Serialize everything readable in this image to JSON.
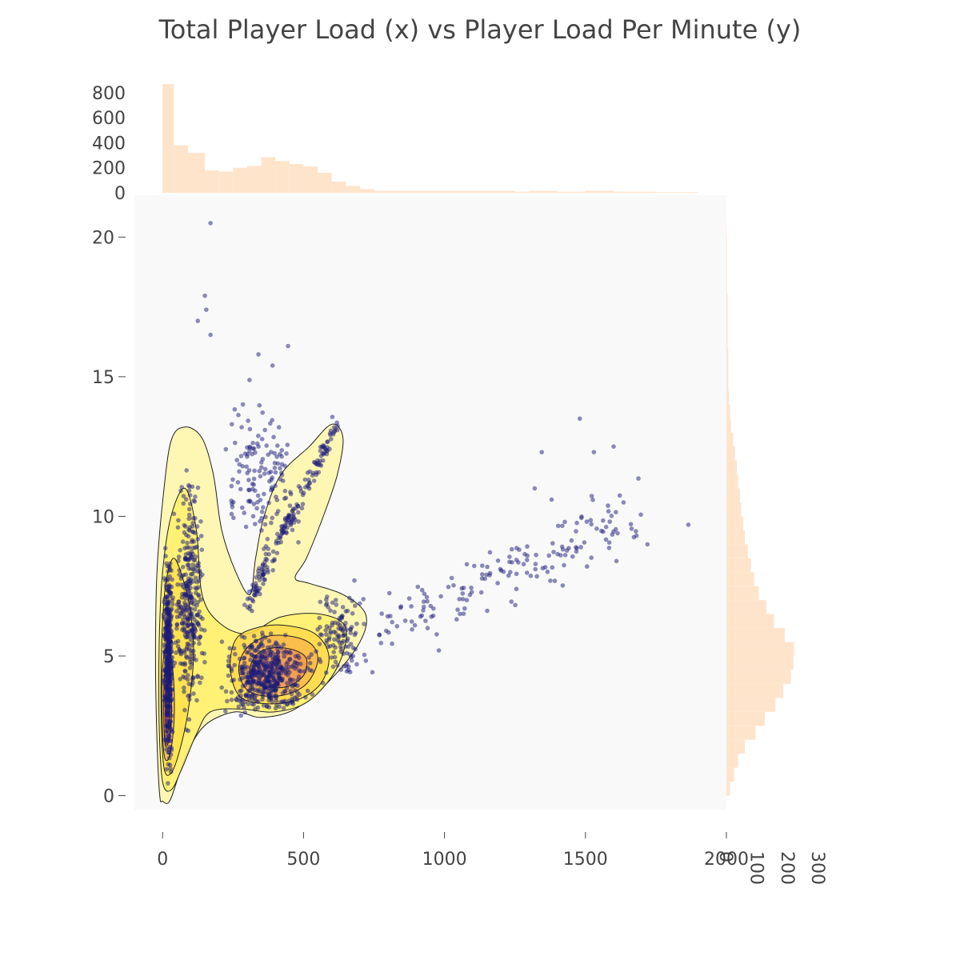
{
  "chart_data": {
    "type": "scatter",
    "title": "Total Player Load (x) vs Player Load Per Minute (y)",
    "xlabel": "",
    "ylabel": "",
    "xlim": [
      -100,
      2000
    ],
    "ylim": [
      -0.5,
      21.5
    ],
    "xticks": [
      0,
      500,
      1000,
      1500,
      2000
    ],
    "yticks": [
      0,
      5,
      10,
      15,
      20
    ],
    "grid": false,
    "legend": "none",
    "colors": {
      "points": "#1a1a7a",
      "histogram": "#ffe4cc",
      "plot_background": "#f9f9f9",
      "contour_line": "#222222",
      "density_low": "#fff38a",
      "density_mid": "#f6b33c",
      "density_high": "#b0506a"
    },
    "top_histogram": {
      "yticks": [
        0,
        200,
        400,
        600,
        800
      ],
      "bins": [
        {
          "x0": 0,
          "x1": 40,
          "count": 870
        },
        {
          "x0": 40,
          "x1": 90,
          "count": 380
        },
        {
          "x0": 90,
          "x1": 150,
          "count": 320
        },
        {
          "x0": 150,
          "x1": 200,
          "count": 180
        },
        {
          "x0": 200,
          "x1": 250,
          "count": 170
        },
        {
          "x0": 250,
          "x1": 300,
          "count": 200
        },
        {
          "x0": 300,
          "x1": 350,
          "count": 215
        },
        {
          "x0": 350,
          "x1": 400,
          "count": 285
        },
        {
          "x0": 400,
          "x1": 450,
          "count": 255
        },
        {
          "x0": 450,
          "x1": 500,
          "count": 230
        },
        {
          "x0": 500,
          "x1": 550,
          "count": 210
        },
        {
          "x0": 550,
          "x1": 600,
          "count": 160
        },
        {
          "x0": 600,
          "x1": 650,
          "count": 90
        },
        {
          "x0": 650,
          "x1": 700,
          "count": 55
        },
        {
          "x0": 700,
          "x1": 750,
          "count": 30
        },
        {
          "x0": 750,
          "x1": 1250,
          "count": 15
        },
        {
          "x0": 1250,
          "x1": 1300,
          "count": 8
        },
        {
          "x0": 1300,
          "x1": 1400,
          "count": 15
        },
        {
          "x0": 1400,
          "x1": 1500,
          "count": 8
        },
        {
          "x0": 1500,
          "x1": 1600,
          "count": 15
        },
        {
          "x0": 1600,
          "x1": 1750,
          "count": 8
        },
        {
          "x0": 1750,
          "x1": 1900,
          "count": 5
        }
      ]
    },
    "right_histogram": {
      "xticks": [
        0,
        100,
        200,
        300
      ],
      "bins": [
        {
          "y0": 0,
          "y1": 0.5,
          "count": 12
        },
        {
          "y0": 0.5,
          "y1": 1,
          "count": 25
        },
        {
          "y0": 1,
          "y1": 1.5,
          "count": 38
        },
        {
          "y0": 1.5,
          "y1": 2,
          "count": 60
        },
        {
          "y0": 2,
          "y1": 2.5,
          "count": 95
        },
        {
          "y0": 2.5,
          "y1": 3,
          "count": 125
        },
        {
          "y0": 3,
          "y1": 3.5,
          "count": 160
        },
        {
          "y0": 3.5,
          "y1": 4,
          "count": 185
        },
        {
          "y0": 4,
          "y1": 4.5,
          "count": 210
        },
        {
          "y0": 4.5,
          "y1": 5,
          "count": 218
        },
        {
          "y0": 5,
          "y1": 5.5,
          "count": 220
        },
        {
          "y0": 5.5,
          "y1": 6,
          "count": 190
        },
        {
          "y0": 6,
          "y1": 6.5,
          "count": 155
        },
        {
          "y0": 6.5,
          "y1": 7,
          "count": 130
        },
        {
          "y0": 7,
          "y1": 7.5,
          "count": 105
        },
        {
          "y0": 7.5,
          "y1": 8,
          "count": 90
        },
        {
          "y0": 8,
          "y1": 8.5,
          "count": 80
        },
        {
          "y0": 8.5,
          "y1": 9,
          "count": 70
        },
        {
          "y0": 9,
          "y1": 9.5,
          "count": 60
        },
        {
          "y0": 9.5,
          "y1": 10,
          "count": 55
        },
        {
          "y0": 10,
          "y1": 10.5,
          "count": 48
        },
        {
          "y0": 10.5,
          "y1": 11,
          "count": 44
        },
        {
          "y0": 11,
          "y1": 11.5,
          "count": 38
        },
        {
          "y0": 11.5,
          "y1": 12,
          "count": 34
        },
        {
          "y0": 12,
          "y1": 12.5,
          "count": 28
        },
        {
          "y0": 12.5,
          "y1": 13,
          "count": 22
        },
        {
          "y0": 13,
          "y1": 13.5,
          "count": 15
        },
        {
          "y0": 13.5,
          "y1": 14,
          "count": 12
        },
        {
          "y0": 14,
          "y1": 14.5,
          "count": 8
        },
        {
          "y0": 14.5,
          "y1": 16,
          "count": 6
        },
        {
          "y0": 16,
          "y1": 18,
          "count": 4
        },
        {
          "y0": 18,
          "y1": 20,
          "count": 2
        },
        {
          "y0": 20,
          "y1": 20.5,
          "count": 1
        }
      ]
    },
    "series": [
      {
        "clusters": [
          {
            "x_min": 0,
            "x_max": 40,
            "y_min": 0.2,
            "y_max": 9.5,
            "count": 420
          },
          {
            "x_min": 30,
            "x_max": 160,
            "y_min": 1.5,
            "y_max": 12.5,
            "count": 320
          },
          {
            "x_min": 180,
            "x_max": 560,
            "y_min": 2.5,
            "y_max": 6.2,
            "count": 460
          },
          {
            "x_min": 300,
            "x_max": 620,
            "y_min": 6.5,
            "y_max": 13.5,
            "count": 180
          },
          {
            "x_min": 180,
            "x_max": 520,
            "y_min": 7.5,
            "y_max": 15.5,
            "count": 140
          },
          {
            "x_min": 500,
            "x_max": 760,
            "y_min": 3.5,
            "y_max": 8.0,
            "count": 120
          },
          {
            "x_min": 760,
            "x_max": 1700,
            "y_min": 5.5,
            "y_max": 12.5,
            "count": 160
          }
        ],
        "outliers": [
          {
            "x": 170,
            "y": 20.5
          },
          {
            "x": 150,
            "y": 17.9
          },
          {
            "x": 155,
            "y": 17.4
          },
          {
            "x": 125,
            "y": 17.0
          },
          {
            "x": 170,
            "y": 16.5
          },
          {
            "x": 445,
            "y": 16.1
          },
          {
            "x": 340,
            "y": 15.8
          },
          {
            "x": 390,
            "y": 15.4
          },
          {
            "x": 1865,
            "y": 9.7
          },
          {
            "x": 1720,
            "y": 9.0
          },
          {
            "x": 1610,
            "y": 8.4
          },
          {
            "x": 1635,
            "y": 10.5
          },
          {
            "x": 1380,
            "y": 10.6
          },
          {
            "x": 1480,
            "y": 13.5
          },
          {
            "x": 1345,
            "y": 12.3
          },
          {
            "x": 1530,
            "y": 12.3
          },
          {
            "x": 1600,
            "y": 12.5
          },
          {
            "x": 1255,
            "y": 7.4
          },
          {
            "x": 1320,
            "y": 11.0
          },
          {
            "x": 940,
            "y": 6.0
          },
          {
            "x": 980,
            "y": 5.2
          }
        ]
      }
    ],
    "density_contours": [
      {
        "level": 1,
        "fill": "#fff7a8",
        "points": [
          [
            -10,
            0
          ],
          [
            -20,
            2
          ],
          [
            -25,
            5
          ],
          [
            -20,
            8
          ],
          [
            0,
            10.5
          ],
          [
            30,
            12.7
          ],
          [
            80,
            13.2
          ],
          [
            140,
            12.8
          ],
          [
            180,
            11.5
          ],
          [
            210,
            9.5
          ],
          [
            260,
            8.0
          ],
          [
            310,
            7.2
          ],
          [
            330,
            8.5
          ],
          [
            360,
            10.0
          ],
          [
            420,
            11.5
          ],
          [
            520,
            12.5
          ],
          [
            600,
            13.3
          ],
          [
            640,
            12.8
          ],
          [
            620,
            11.5
          ],
          [
            570,
            10.0
          ],
          [
            510,
            8.5
          ],
          [
            470,
            7.8
          ],
          [
            520,
            7.6
          ],
          [
            640,
            7.2
          ],
          [
            720,
            6.5
          ],
          [
            700,
            5.5
          ],
          [
            600,
            4.2
          ],
          [
            470,
            3.1
          ],
          [
            350,
            2.8
          ],
          [
            260,
            3.0
          ],
          [
            160,
            2.6
          ],
          [
            100,
            1.8
          ],
          [
            60,
            0.8
          ],
          [
            25,
            -0.2
          ],
          [
            0,
            -0.2
          ]
        ]
      },
      {
        "level": 2,
        "fill": "#fff06a",
        "points": [
          [
            0,
            0.5
          ],
          [
            -12,
            2.5
          ],
          [
            -12,
            5.5
          ],
          [
            0,
            8.0
          ],
          [
            30,
            10.0
          ],
          [
            80,
            11.0
          ],
          [
            120,
            9.5
          ],
          [
            140,
            7.2
          ],
          [
            200,
            6.2
          ],
          [
            300,
            5.8
          ],
          [
            420,
            6.4
          ],
          [
            560,
            6.5
          ],
          [
            650,
            6.0
          ],
          [
            620,
            4.6
          ],
          [
            520,
            3.4
          ],
          [
            400,
            3.0
          ],
          [
            280,
            3.1
          ],
          [
            170,
            3.0
          ],
          [
            120,
            2.2
          ],
          [
            70,
            1.0
          ],
          [
            30,
            0.2
          ]
        ]
      },
      {
        "level": 3,
        "fill": "#ffe04a",
        "points": [
          [
            5,
            1.0
          ],
          [
            -5,
            3.0
          ],
          [
            -3,
            5.5
          ],
          [
            10,
            7.5
          ],
          [
            40,
            8.5
          ],
          [
            80,
            7.5
          ],
          [
            100,
            6.5
          ],
          [
            110,
            5.0
          ],
          [
            90,
            3.0
          ],
          [
            60,
            1.6
          ],
          [
            30,
            0.8
          ]
        ]
      },
      {
        "level": 4,
        "fill": "#ffd84a",
        "points": [
          [
            240,
            4.6
          ],
          [
            260,
            5.6
          ],
          [
            330,
            6.0
          ],
          [
            430,
            6.1
          ],
          [
            540,
            5.8
          ],
          [
            590,
            5.0
          ],
          [
            560,
            4.0
          ],
          [
            470,
            3.4
          ],
          [
            350,
            3.3
          ],
          [
            270,
            3.6
          ]
        ]
      },
      {
        "level": 5,
        "fill": "#f9b84a",
        "points": [
          [
            270,
            4.6
          ],
          [
            300,
            5.3
          ],
          [
            370,
            5.7
          ],
          [
            460,
            5.7
          ],
          [
            530,
            5.4
          ],
          [
            550,
            4.8
          ],
          [
            510,
            4.0
          ],
          [
            430,
            3.6
          ],
          [
            340,
            3.6
          ],
          [
            290,
            3.9
          ]
        ]
      },
      {
        "level": 6,
        "fill": "#f09a50",
        "points": [
          [
            310,
            4.6
          ],
          [
            340,
            5.1
          ],
          [
            400,
            5.3
          ],
          [
            470,
            5.2
          ],
          [
            510,
            4.9
          ],
          [
            500,
            4.3
          ],
          [
            440,
            3.9
          ],
          [
            370,
            3.9
          ],
          [
            320,
            4.1
          ]
        ]
      },
      {
        "level": 7,
        "fill": "#f5b850",
        "points": [
          [
            5,
            1.5
          ],
          [
            -2,
            3.0
          ],
          [
            0,
            4.6
          ],
          [
            15,
            5.3
          ],
          [
            35,
            4.6
          ],
          [
            42,
            3.2
          ],
          [
            35,
            2.0
          ],
          [
            20,
            1.3
          ]
        ]
      },
      {
        "level": 8,
        "fill": "#e07c5a",
        "points": [
          [
            8,
            1.9
          ],
          [
            4,
            3.0
          ],
          [
            6,
            4.2
          ],
          [
            16,
            4.7
          ],
          [
            28,
            4.1
          ],
          [
            32,
            3.0
          ],
          [
            26,
            2.2
          ],
          [
            16,
            1.8
          ]
        ]
      },
      {
        "level": 9,
        "fill": "#b8566a",
        "points": [
          [
            12,
            2.3
          ],
          [
            10,
            3.0
          ],
          [
            12,
            3.7
          ],
          [
            18,
            4.0
          ],
          [
            24,
            3.6
          ],
          [
            25,
            2.9
          ],
          [
            21,
            2.4
          ]
        ]
      }
    ]
  }
}
